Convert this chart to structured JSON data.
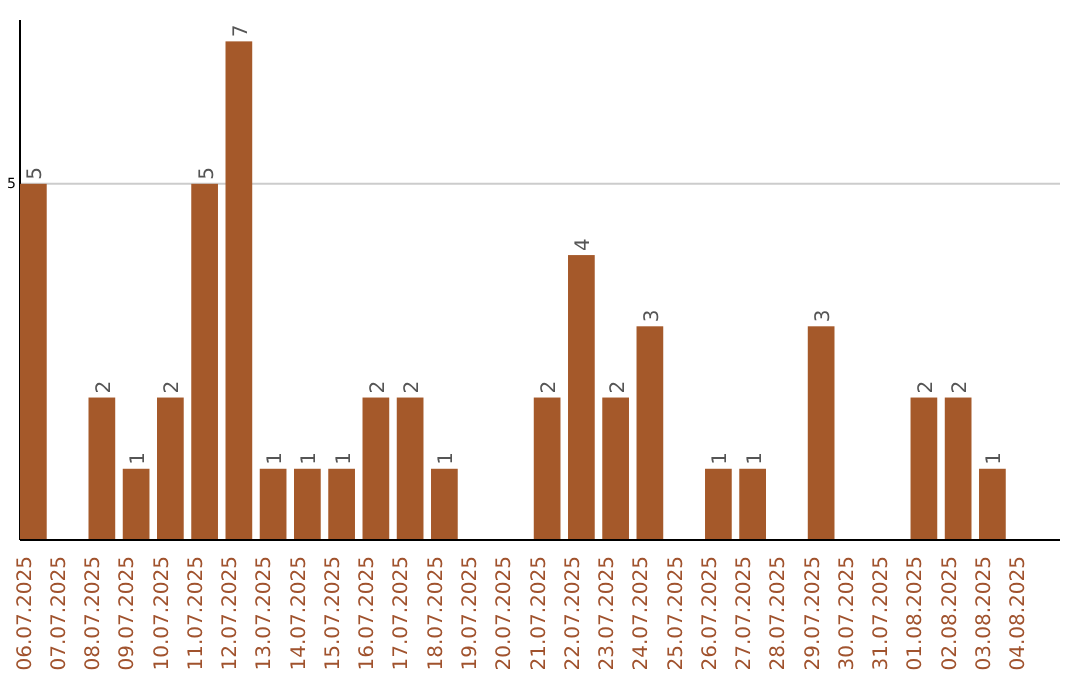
{
  "chart_data": {
    "type": "bar",
    "categories": [
      "06.07.2025",
      "07.07.2025",
      "08.07.2025",
      "09.07.2025",
      "10.07.2025",
      "11.07.2025",
      "12.07.2025",
      "13.07.2025",
      "14.07.2025",
      "15.07.2025",
      "16.07.2025",
      "17.07.2025",
      "18.07.2025",
      "19.07.2025",
      "20.07.2025",
      "21.07.2025",
      "22.07.2025",
      "23.07.2025",
      "24.07.2025",
      "25.07.2025",
      "26.07.2025",
      "27.07.2025",
      "28.07.2025",
      "29.07.2025",
      "30.07.2025",
      "31.07.2025",
      "01.08.2025",
      "02.08.2025",
      "03.08.2025",
      "04.08.2025"
    ],
    "values": [
      5,
      0,
      2,
      1,
      2,
      5,
      7,
      1,
      1,
      1,
      2,
      2,
      1,
      0,
      0,
      2,
      4,
      2,
      3,
      0,
      1,
      1,
      0,
      3,
      0,
      0,
      2,
      2,
      1,
      0
    ],
    "value_labels": [
      "5",
      null,
      "2",
      "1",
      "2",
      "5",
      "7",
      "1",
      "1",
      "1",
      "2",
      "2",
      "1",
      null,
      null,
      "2",
      "4",
      "2",
      "3",
      null,
      "1",
      "1",
      null,
      "3",
      null,
      null,
      "2",
      "2",
      "1",
      null
    ],
    "color": "#a5592a",
    "ylim": [
      0,
      7.3
    ],
    "yticks": [
      5
    ],
    "grid": "y"
  }
}
